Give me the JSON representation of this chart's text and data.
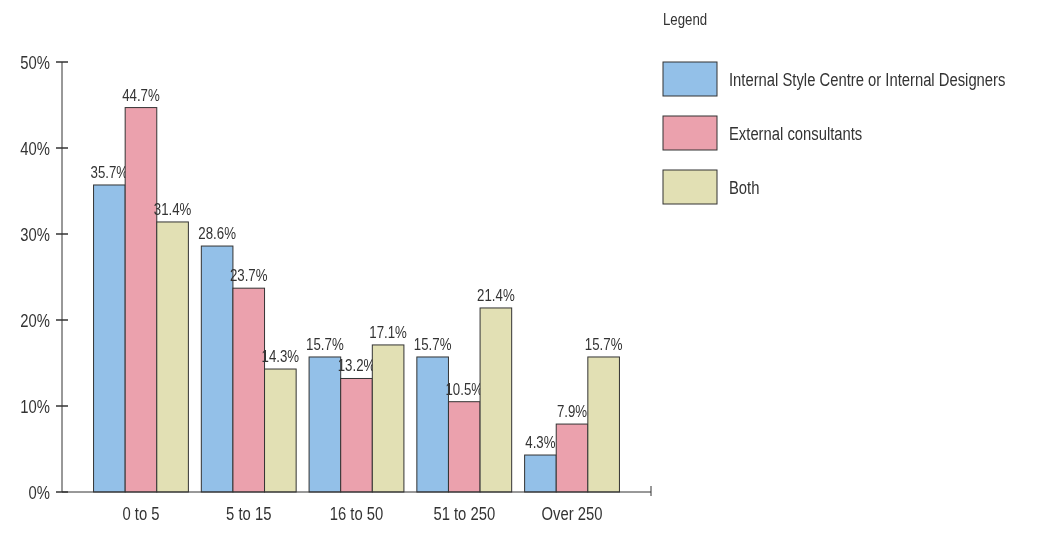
{
  "chart_data": {
    "type": "bar",
    "categories": [
      "0 to 5",
      "5 to 15",
      "16 to 50",
      "51 to 250",
      "Over 250"
    ],
    "series": [
      {
        "name": "Internal Style Centre or Internal Designers",
        "color": "#93c0e8",
        "values": [
          35.7,
          28.6,
          15.7,
          15.7,
          4.3
        ],
        "value_labels": [
          "35.7%",
          "28.6%",
          "15.7%",
          "15.7%",
          "4.3%"
        ]
      },
      {
        "name": "External consultants",
        "color": "#eba1ad",
        "values": [
          44.7,
          23.7,
          13.2,
          10.5,
          7.9
        ],
        "value_labels": [
          "44.7%",
          "23.7%",
          "13.2%",
          "10.5%",
          "7.9%"
        ]
      },
      {
        "name": "Both",
        "color": "#e2e0b4",
        "values": [
          31.4,
          14.3,
          17.1,
          21.4,
          15.7
        ],
        "value_labels": [
          "31.4%",
          "14.3%",
          "17.1%",
          "21.4%",
          "15.7%"
        ]
      }
    ],
    "ylim": [
      0,
      50
    ],
    "yticks": [
      {
        "value": 0,
        "label": "0%"
      },
      {
        "value": 10,
        "label": "10%"
      },
      {
        "value": 20,
        "label": "20%"
      },
      {
        "value": 30,
        "label": "30%"
      },
      {
        "value": 40,
        "label": "40%"
      },
      {
        "value": 50,
        "label": "50%"
      }
    ],
    "grid": false,
    "legend": "top right",
    "legend_title": "Legend"
  }
}
